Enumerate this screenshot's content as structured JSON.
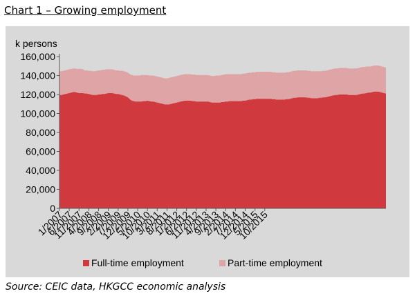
{
  "title": "Chart 1 – Growing employment",
  "source": "Source: CEIC data, HKGCC economic analysis",
  "colors": {
    "fulltime": "#d0393e",
    "parttime": "#dfa4a6",
    "background": "#d9d9d9"
  },
  "chart_data": {
    "type": "area",
    "stacked": true,
    "ylabel": "k persons",
    "ylim": [
      0,
      160000
    ],
    "yticks": [
      "0",
      "20,000",
      "40,000",
      "60,000",
      "80,000",
      "100,000",
      "120,000",
      "140,000",
      "160,000"
    ],
    "grid": false,
    "legend": "bottom",
    "x_tick_labels": [
      "1/2007",
      "6/2007",
      "11/2007",
      "4/2008",
      "9/2008",
      "2/2009",
      "7/2009",
      "12/2009",
      "5/2010",
      "10/2010",
      "3/2011",
      "8/2011",
      "1/2012",
      "6/2012",
      "11/2012",
      "4/2013",
      "9/2013",
      "2/2014",
      "7/2014",
      "12/2014",
      "5/2015",
      "10/2015"
    ],
    "x_tick_every": 5,
    "series": [
      {
        "name": "Full-time employment",
        "values": [
          119500,
          119500,
          120000,
          120500,
          121000,
          121500,
          122000,
          122500,
          122500,
          122000,
          121500,
          121500,
          121500,
          121000,
          121000,
          120500,
          120000,
          119500,
          119500,
          119500,
          120000,
          120000,
          120500,
          120500,
          121000,
          121500,
          121500,
          121500,
          121000,
          120500,
          120500,
          120000,
          119500,
          119000,
          118000,
          117000,
          115000,
          113500,
          113000,
          112500,
          112500,
          112500,
          112500,
          113000,
          113000,
          113500,
          113000,
          112500,
          112500,
          112000,
          111500,
          111000,
          110500,
          110000,
          109500,
          109500,
          109500,
          110000,
          110500,
          111000,
          111500,
          112000,
          112500,
          113000,
          113500,
          113500,
          113500,
          113500,
          113000,
          113000,
          112500,
          112500,
          112500,
          112500,
          112500,
          112500,
          112500,
          112000,
          111500,
          111500,
          111500,
          111500,
          111500,
          112000,
          112000,
          112500,
          112500,
          113000,
          113000,
          113000,
          113000,
          113000,
          113000,
          113000,
          113500,
          113500,
          114000,
          114500,
          114500,
          115000,
          115000,
          115500,
          115500,
          115500,
          115500,
          115500,
          115500,
          115500,
          115500,
          115000,
          115000,
          114500,
          114500,
          114500,
          114500,
          114500,
          115000,
          115000,
          115500,
          116000,
          116500,
          116500,
          117000,
          117000,
          117000,
          117000,
          117000,
          116500,
          116500,
          116000,
          116000,
          116000,
          116000,
          116500,
          116500,
          117000,
          117000,
          117500,
          118000,
          118500,
          119000,
          119500,
          119500,
          120000,
          120000,
          120000,
          120000,
          120000,
          119500,
          119500,
          119500,
          119500,
          119500,
          120000,
          120500,
          121000,
          121000,
          121500,
          122000,
          122000,
          122500,
          123000,
          123000,
          123000,
          122500,
          122000,
          121500,
          121000
        ]
      },
      {
        "name": "Part-time employment",
        "values": [
          25000,
          25000,
          25000,
          25000,
          25000,
          25000,
          25000,
          25000,
          25000,
          25000,
          25500,
          25500,
          25000,
          24500,
          24500,
          24500,
          25000,
          25000,
          25000,
          25500,
          25500,
          25500,
          25500,
          25500,
          25500,
          25000,
          25000,
          25000,
          25000,
          25000,
          25000,
          25000,
          25500,
          25500,
          26000,
          26000,
          26500,
          27000,
          27000,
          27500,
          27500,
          27500,
          28000,
          27500,
          27500,
          27000,
          27000,
          27500,
          27500,
          27500,
          27500,
          27500,
          27500,
          27500,
          27500,
          27500,
          28000,
          28000,
          28000,
          28000,
          28000,
          28000,
          28000,
          28000,
          28000,
          28000,
          28000,
          28000,
          28000,
          28000,
          28000,
          28000,
          28000,
          28000,
          28000,
          28000,
          28000,
          28000,
          28000,
          28000,
          28500,
          28500,
          28500,
          28500,
          29000,
          29000,
          29000,
          28500,
          28500,
          28500,
          28500,
          28500,
          28500,
          28500,
          28500,
          28500,
          28500,
          28500,
          28500,
          28500,
          28500,
          28500,
          28500,
          28500,
          28500,
          28500,
          28500,
          28500,
          28500,
          28500,
          28500,
          28500,
          28500,
          28500,
          28500,
          28500,
          28500,
          28500,
          28500,
          28500,
          28500,
          28500,
          28500,
          28500,
          28500,
          28500,
          28500,
          28500,
          28500,
          28500,
          28500,
          28500,
          28500,
          28000,
          28000,
          28000,
          28000,
          28000,
          28000,
          28000,
          28000,
          28000,
          28000,
          28000,
          28000,
          28000,
          28000,
          28000,
          28000,
          28000,
          28000,
          28000,
          28000,
          28000,
          28000,
          28000,
          28000,
          28000,
          27500,
          27500,
          27500,
          27500,
          27500,
          27500,
          27500,
          27500,
          27500,
          27500,
          27500,
          27500,
          27500,
          27500,
          27500
        ]
      }
    ]
  }
}
